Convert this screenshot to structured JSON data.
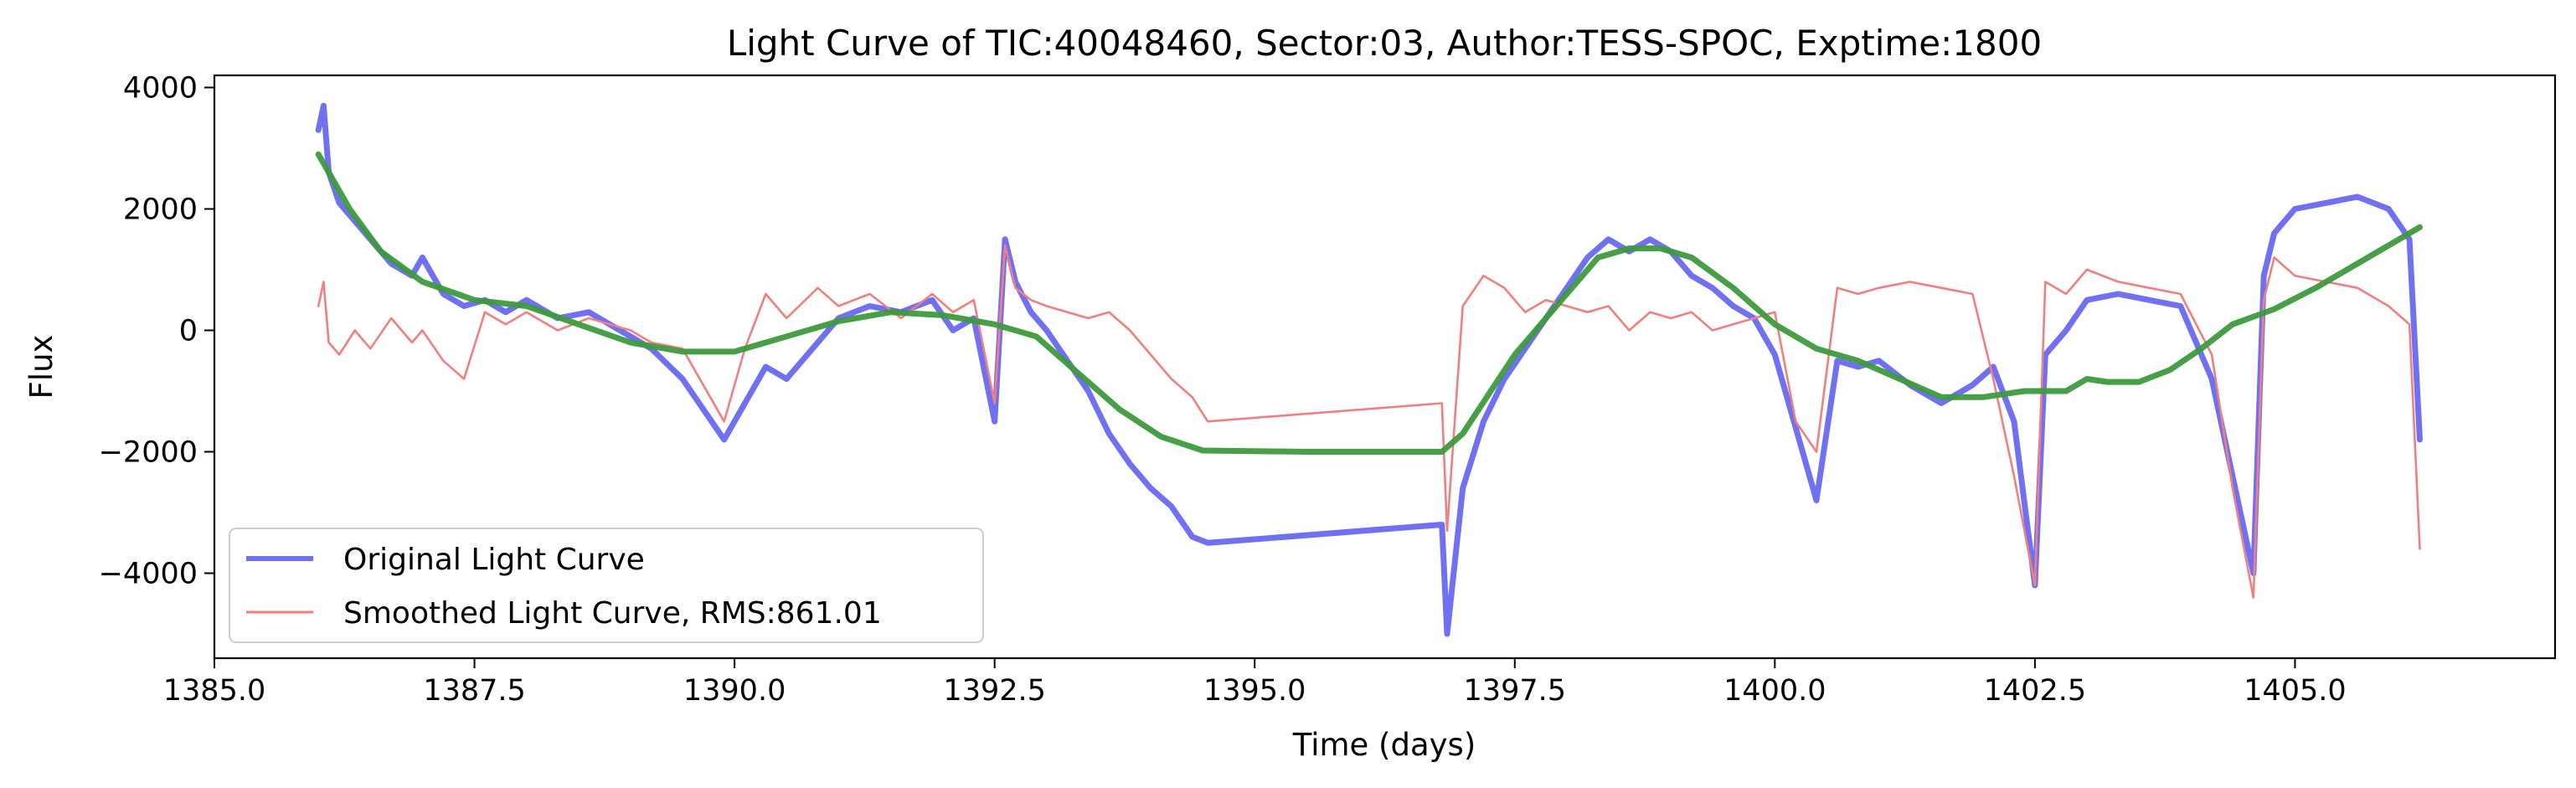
{
  "chart_data": {
    "type": "line",
    "title": "Light Curve of TIC:40048460, Sector:03, Author:TESS-SPOC, Exptime:1800",
    "xlabel": "Time (days)",
    "ylabel": "Flux",
    "xlim": [
      1385.0,
      1407.5
    ],
    "ylim": [
      -5400,
      4200
    ],
    "xticks": [
      1385.0,
      1387.5,
      1390.0,
      1392.5,
      1395.0,
      1397.5,
      1400.0,
      1402.5,
      1405.0
    ],
    "xtick_labels": [
      "1385.0",
      "1387.5",
      "1390.0",
      "1392.5",
      "1395.0",
      "1397.5",
      "1400.0",
      "1402.5",
      "1405.0"
    ],
    "yticks": [
      -4000,
      -2000,
      0,
      2000,
      4000
    ],
    "ytick_labels": [
      "−4000",
      "−2000",
      "0",
      "2000",
      "4000"
    ],
    "grid": false,
    "legend_position": "lower-left",
    "series": [
      {
        "name": "Original Light Curve",
        "color": "#7070f2",
        "x": [
          1386.0,
          1386.05,
          1386.1,
          1386.2,
          1386.35,
          1386.5,
          1386.7,
          1386.9,
          1387.0,
          1387.2,
          1387.4,
          1387.6,
          1387.8,
          1388.0,
          1388.3,
          1388.6,
          1388.8,
          1389.0,
          1389.2,
          1389.5,
          1389.7,
          1389.9,
          1390.1,
          1390.3,
          1390.5,
          1390.8,
          1391.0,
          1391.3,
          1391.6,
          1391.9,
          1392.1,
          1392.3,
          1392.5,
          1392.6,
          1392.7,
          1392.85,
          1393.0,
          1393.2,
          1393.4,
          1393.6,
          1393.8,
          1394.0,
          1394.2,
          1394.4,
          1394.55,
          1396.8,
          1396.85,
          1397.0,
          1397.2,
          1397.4,
          1397.6,
          1397.8,
          1398.0,
          1398.2,
          1398.4,
          1398.6,
          1398.8,
          1399.0,
          1399.2,
          1399.4,
          1399.6,
          1399.8,
          1400.0,
          1400.2,
          1400.4,
          1400.6,
          1400.8,
          1401.0,
          1401.3,
          1401.6,
          1401.9,
          1402.1,
          1402.3,
          1402.5,
          1402.6,
          1402.8,
          1403.0,
          1403.3,
          1403.6,
          1403.9,
          1404.2,
          1404.4,
          1404.6,
          1404.7,
          1404.8,
          1405.0,
          1405.3,
          1405.6,
          1405.9,
          1406.1,
          1406.2
        ],
        "y": [
          3300,
          3700,
          2600,
          2100,
          1800,
          1500,
          1100,
          900,
          1200,
          600,
          400,
          500,
          300,
          500,
          200,
          300,
          100,
          -100,
          -300,
          -800,
          -1300,
          -1800,
          -1200,
          -600,
          -800,
          -200,
          200,
          400,
          300,
          500,
          0,
          200,
          -1500,
          1500,
          800,
          300,
          0,
          -500,
          -1000,
          -1700,
          -2200,
          -2600,
          -2900,
          -3400,
          -3500,
          -3200,
          -5000,
          -2600,
          -1500,
          -800,
          -300,
          200,
          700,
          1200,
          1500,
          1300,
          1500,
          1300,
          900,
          700,
          400,
          200,
          -400,
          -1600,
          -2800,
          -500,
          -600,
          -500,
          -900,
          -1200,
          -900,
          -600,
          -1500,
          -4200,
          -400,
          0,
          500,
          600,
          500,
          400,
          -800,
          -2400,
          -4000,
          900,
          1600,
          2000,
          2100,
          2200,
          2000,
          1500,
          -1800
        ]
      },
      {
        "name": "Smoothed Light Curve, RMS:861.01",
        "color": "#f08080",
        "x": [
          1386.0,
          1386.05,
          1386.1,
          1386.2,
          1386.35,
          1386.5,
          1386.7,
          1386.9,
          1387.0,
          1387.2,
          1387.4,
          1387.6,
          1387.8,
          1388.0,
          1388.3,
          1388.6,
          1388.8,
          1389.0,
          1389.2,
          1389.5,
          1389.7,
          1389.9,
          1390.1,
          1390.3,
          1390.5,
          1390.8,
          1391.0,
          1391.3,
          1391.6,
          1391.9,
          1392.1,
          1392.3,
          1392.5,
          1392.6,
          1392.7,
          1392.85,
          1393.0,
          1393.2,
          1393.4,
          1393.6,
          1393.8,
          1394.0,
          1394.2,
          1394.4,
          1394.55,
          1396.8,
          1396.85,
          1397.0,
          1397.2,
          1397.4,
          1397.6,
          1397.8,
          1398.0,
          1398.2,
          1398.4,
          1398.6,
          1398.8,
          1399.0,
          1399.2,
          1399.4,
          1399.6,
          1399.8,
          1400.0,
          1400.2,
          1400.4,
          1400.6,
          1400.8,
          1401.0,
          1401.3,
          1401.6,
          1401.9,
          1402.1,
          1402.3,
          1402.5,
          1402.6,
          1402.8,
          1403.0,
          1403.3,
          1403.6,
          1403.9,
          1404.2,
          1404.4,
          1404.6,
          1404.7,
          1404.8,
          1405.0,
          1405.3,
          1405.6,
          1405.9,
          1406.1,
          1406.2
        ],
        "y": [
          400,
          800,
          -200,
          -400,
          0,
          -300,
          200,
          -200,
          0,
          -500,
          -800,
          300,
          100,
          300,
          0,
          200,
          100,
          0,
          -200,
          -300,
          -900,
          -1500,
          -300,
          600,
          200,
          700,
          400,
          600,
          200,
          600,
          300,
          500,
          -1200,
          1400,
          700,
          500,
          400,
          300,
          200,
          300,
          0,
          -400,
          -800,
          -1100,
          -1500,
          -1200,
          -3300,
          400,
          900,
          700,
          300,
          500,
          400,
          300,
          400,
          0,
          300,
          200,
          300,
          0,
          100,
          200,
          300,
          -1500,
          -2000,
          700,
          600,
          700,
          800,
          700,
          600,
          -800,
          -2400,
          -4200,
          800,
          600,
          1000,
          800,
          700,
          600,
          -400,
          -2600,
          -4400,
          500,
          1200,
          900,
          800,
          700,
          400,
          100,
          -3600
        ]
      },
      {
        "name": "",
        "color": "#3d9a3d",
        "x": [
          1386.0,
          1386.3,
          1386.6,
          1387.0,
          1387.5,
          1388.0,
          1388.5,
          1389.0,
          1389.5,
          1390.0,
          1390.5,
          1391.0,
          1391.5,
          1392.0,
          1392.5,
          1392.9,
          1393.3,
          1393.7,
          1394.1,
          1394.5,
          1395.5,
          1396.8,
          1397.0,
          1397.5,
          1398.0,
          1398.3,
          1398.6,
          1398.9,
          1399.2,
          1399.6,
          1400.0,
          1400.4,
          1400.8,
          1401.2,
          1401.6,
          1402.0,
          1402.4,
          1402.8,
          1403.0,
          1403.2,
          1403.5,
          1403.8,
          1404.1,
          1404.4,
          1404.8,
          1405.2,
          1405.6,
          1406.0,
          1406.2
        ],
        "y": [
          2900,
          2000,
          1300,
          800,
          500,
          400,
          100,
          -200,
          -350,
          -350,
          -100,
          150,
          300,
          250,
          100,
          -100,
          -700,
          -1300,
          -1750,
          -1980,
          -2000,
          -2000,
          -1700,
          -400,
          600,
          1200,
          1350,
          1350,
          1200,
          700,
          100,
          -300,
          -500,
          -800,
          -1100,
          -1100,
          -1000,
          -1000,
          -800,
          -850,
          -850,
          -650,
          -300,
          100,
          350,
          700,
          1100,
          1500,
          1700
        ]
      }
    ]
  }
}
